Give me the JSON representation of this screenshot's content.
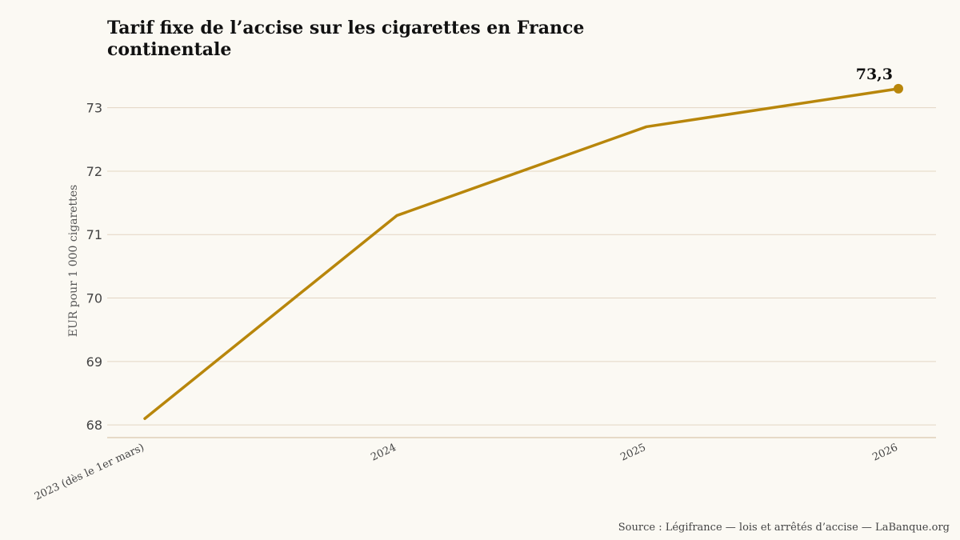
{
  "chart_data": {
    "type": "line",
    "title": "Tarif fixe de l’accise sur les cigarettes en France continentale",
    "ylabel": "EUR pour 1 000 cigarettes",
    "xlabel": "",
    "categories": [
      "2023 (dès le 1er mars)",
      "2024",
      "2025",
      "2026"
    ],
    "series": [
      {
        "values": [
          68.1,
          71.3,
          72.7,
          73.3
        ],
        "color": "#b8860b"
      }
    ],
    "yticks": [
      68,
      69,
      70,
      71,
      72,
      73
    ],
    "ytick_labels": [
      "68",
      "69",
      "70",
      "71",
      "72",
      "73"
    ],
    "ylim": [
      67.8,
      73.5
    ],
    "grid": true,
    "end_label": "73,3",
    "colors": {
      "line": "#b8860b",
      "grid": "#e3d6c3",
      "axis": "#d9c7ad"
    }
  },
  "source": "Source : Légifrance — lois et arrêtés d’accise — LaBanque.org"
}
